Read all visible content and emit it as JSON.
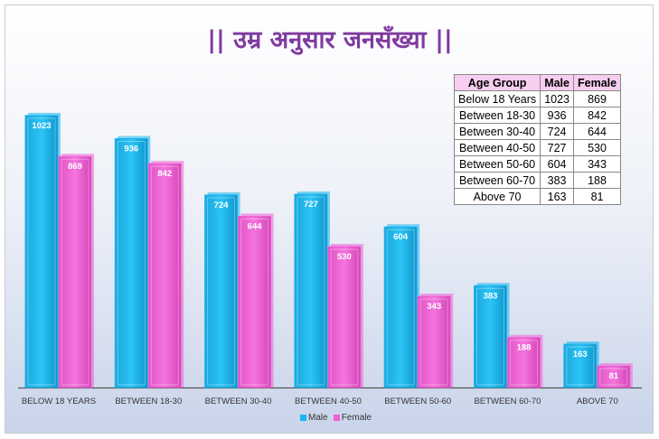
{
  "title": "|| उम्र अनुसार जनसँख्या ||",
  "colors": {
    "male": "#19b5ef",
    "female": "#ee62d5",
    "title": "#7f3aa0"
  },
  "table": {
    "headers": [
      "Age Group",
      "Male",
      "Female"
    ],
    "rows": [
      [
        "Below 18 Years",
        "1023",
        "869"
      ],
      [
        "Between 18-30",
        "936",
        "842"
      ],
      [
        "Between 30-40",
        "724",
        "644"
      ],
      [
        "Between 40-50",
        "727",
        "530"
      ],
      [
        "Between 50-60",
        "604",
        "343"
      ],
      [
        "Between 60-70",
        "383",
        "188"
      ],
      [
        "Above 70",
        "163",
        "81"
      ]
    ]
  },
  "legend": {
    "male": "Male",
    "female": "Female"
  },
  "chart_data": {
    "type": "bar",
    "title": "|| उम्र अनुसार जनसँख्या ||",
    "categories": [
      "BELOW 18 YEARS",
      "BETWEEN 18-30",
      "BETWEEN 30-40",
      "BETWEEN 40-50",
      "BETWEEN 50-60",
      "BETWEEN 60-70",
      "ABOVE 70"
    ],
    "series": [
      {
        "name": "Male",
        "values": [
          1023,
          936,
          724,
          727,
          604,
          383,
          163
        ]
      },
      {
        "name": "Female",
        "values": [
          869,
          842,
          644,
          530,
          343,
          188,
          81
        ]
      }
    ],
    "ylim": [
      0,
      1060
    ],
    "data_labels": true,
    "grid": false,
    "legend_position": "bottom"
  }
}
